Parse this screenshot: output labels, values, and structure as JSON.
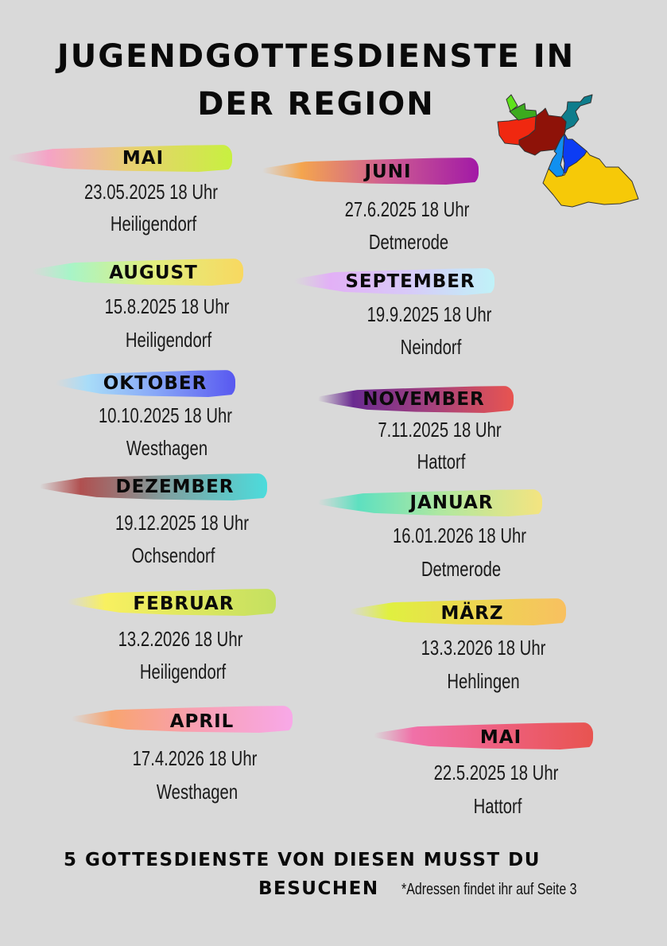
{
  "title": {
    "line1": "JUGENDGOTTESDIENSTE IN",
    "line2": "DER REGION"
  },
  "map": {
    "icon": "region-map",
    "colors": [
      "#5ee21a",
      "#3caa1e",
      "#f02810",
      "#8e1208",
      "#0e7d8c",
      "#0c3cf4",
      "#1090f0",
      "#f6c908"
    ]
  },
  "events": [
    {
      "month": "MAI",
      "date": "23.05.2025 18 Uhr",
      "place": "Heiligendorf",
      "colors": [
        "#f5a3c6",
        "#e8d070",
        "#c8f040"
      ]
    },
    {
      "month": "JUNI",
      "date": "27.6.2025 18 Uhr",
      "place": "Detmerode",
      "colors": [
        "#f4a54e",
        "#d06090",
        "#a21aa6"
      ]
    },
    {
      "month": "AUGUST",
      "date": "15.8.2025 18 Uhr",
      "place": "Heiligendorf",
      "colors": [
        "#a8f4c8",
        "#e0f080",
        "#f8d860"
      ]
    },
    {
      "month": "SEPTEMBER",
      "date": "19.9.2025 18 Uhr",
      "place": "Neindorf",
      "colors": [
        "#e2b0f6",
        "#d8c8f8",
        "#c0f2f8"
      ]
    },
    {
      "month": "OKTOBER",
      "date": "10.10.2025 18 Uhr",
      "place": "Westhagen",
      "colors": [
        "#a8dcf8",
        "#88a8f8",
        "#5858f0"
      ]
    },
    {
      "month": "NOVEMBER",
      "date": "7.11.2025 18 Uhr",
      "place": "Hattorf",
      "colors": [
        "#6a2a90",
        "#a04080",
        "#e85450"
      ]
    },
    {
      "month": "DEZEMBER",
      "date": "19.12.2025 18 Uhr",
      "place": "Ochsendorf",
      "colors": [
        "#b05050",
        "#80a0a0",
        "#4cdcdc"
      ]
    },
    {
      "month": "JANUAR",
      "date": "16.01.2026 18 Uhr",
      "place": "Detmerode",
      "colors": [
        "#5ee0c0",
        "#b0e8a0",
        "#f4e480"
      ]
    },
    {
      "month": "FEBRUAR",
      "date": "13.2.2026 18 Uhr",
      "place": "Heiligendorf",
      "colors": [
        "#f8f060",
        "#e0e860",
        "#c4e060"
      ]
    },
    {
      "month": "MÄRZ",
      "date": "13.3.2026 18 Uhr",
      "place": "Hehlingen",
      "colors": [
        "#e0f040",
        "#ecd850",
        "#f8c060"
      ]
    },
    {
      "month": "APRIL",
      "date": "17.4.2026 18 Uhr",
      "place": "Westhagen",
      "colors": [
        "#f8a470",
        "#f8a0b0",
        "#f8a8e8"
      ]
    },
    {
      "month": "MAI",
      "date": "22.5.2025 18 Uhr",
      "place": "Hattorf",
      "colors": [
        "#f070a8",
        "#ee6080",
        "#e85450"
      ]
    }
  ],
  "footer": {
    "line1": "5 GOTTESDIENSTE VON DIESEN MUSST DU",
    "line2": "BESUCHEN",
    "note": "*Adressen findet ihr auf Seite 3"
  }
}
